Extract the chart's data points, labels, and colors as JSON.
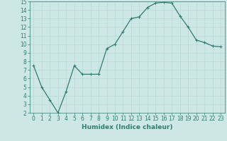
{
  "x": [
    0,
    1,
    2,
    3,
    4,
    5,
    6,
    7,
    8,
    9,
    10,
    11,
    12,
    13,
    14,
    15,
    16,
    17,
    18,
    19,
    20,
    21,
    22,
    23
  ],
  "y": [
    7.5,
    5.0,
    3.5,
    2.0,
    4.5,
    7.5,
    6.5,
    6.5,
    6.5,
    9.5,
    10.0,
    11.5,
    13.0,
    13.2,
    14.3,
    14.8,
    14.9,
    14.8,
    13.3,
    12.0,
    10.5,
    10.2,
    9.8,
    9.7
  ],
  "line_color": "#2e7d6e",
  "marker": "+",
  "marker_size": 3,
  "bg_color": "#cde8e4",
  "grid_color": "#b8d8d4",
  "xlabel": "Humidex (Indice chaleur)",
  "xlim": [
    -0.5,
    23.5
  ],
  "ylim": [
    2,
    15
  ],
  "yticks": [
    2,
    3,
    4,
    5,
    6,
    7,
    8,
    9,
    10,
    11,
    12,
    13,
    14,
    15
  ],
  "xticks": [
    0,
    1,
    2,
    3,
    4,
    5,
    6,
    7,
    8,
    9,
    10,
    11,
    12,
    13,
    14,
    15,
    16,
    17,
    18,
    19,
    20,
    21,
    22,
    23
  ],
  "tick_fontsize": 5.5,
  "label_fontsize": 6.5,
  "linewidth": 0.9,
  "marker_edge_width": 0.8
}
